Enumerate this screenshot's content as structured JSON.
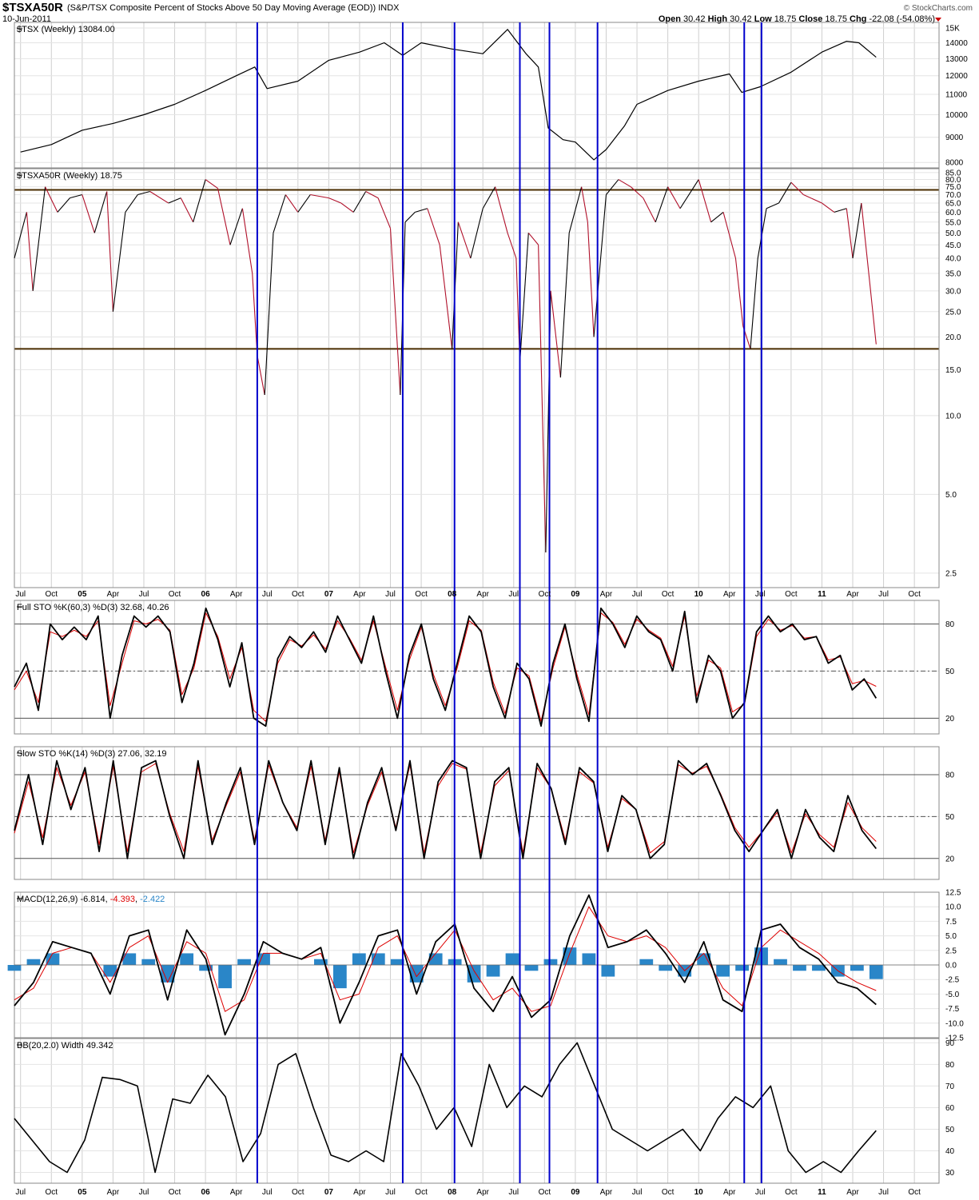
{
  "header": {
    "symbol": "$TSXA50R",
    "description": "(S&P/TSX Composite Percent of Stocks Above 50 Day Moving Average (EOD)) INDX",
    "date": "10-Jun-2011",
    "open_label": "Open",
    "open": "30.42",
    "high_label": "High",
    "high": "30.42",
    "low_label": "Low",
    "low": "18.75",
    "close_label": "Close",
    "close": "18.75",
    "chg_label": "Chg",
    "chg": "-22.08 (-54.08%)",
    "credit": "© StockCharts.com",
    "chg_color": "#cc0000"
  },
  "colors": {
    "price": "#000000",
    "breadth_down": "#b0102a",
    "signal": "#dd0000",
    "histogram": "#2a86c8",
    "vline": "#0000cc",
    "hline": "#4a2c00",
    "grid": "#cfcfcf"
  },
  "chart_data": [
    {
      "type": "line",
      "title": "$TSX (Weekly) 13084.00",
      "scale": "log",
      "yticks": [
        "8000",
        "9000",
        "10000",
        "11000",
        "12000",
        "13000",
        "14000",
        "15K"
      ],
      "ylim": [
        7800,
        15400
      ],
      "x": [
        2004.5,
        2004.75,
        2005.0,
        2005.25,
        2005.5,
        2005.75,
        2006.0,
        2006.25,
        2006.4,
        2006.5,
        2006.75,
        2007.0,
        2007.25,
        2007.45,
        2007.6,
        2007.75,
        2008.0,
        2008.25,
        2008.45,
        2008.6,
        2008.7,
        2008.78,
        2008.9,
        2009.0,
        2009.15,
        2009.25,
        2009.4,
        2009.5,
        2009.75,
        2010.0,
        2010.25,
        2010.35,
        2010.5,
        2010.75,
        2011.0,
        2011.2,
        2011.3,
        2011.44
      ],
      "values": [
        8400,
        8700,
        9300,
        9600,
        10000,
        10500,
        11200,
        12000,
        12500,
        11300,
        11700,
        12900,
        13400,
        14000,
        13200,
        14000,
        13600,
        13300,
        14900,
        13300,
        12500,
        9400,
        8900,
        8800,
        8100,
        8500,
        9500,
        10500,
        11200,
        11700,
        12100,
        11100,
        11400,
        12200,
        13400,
        14100,
        14000,
        13084
      ],
      "annotations": []
    },
    {
      "type": "line",
      "title": "$TSXA50R (Weekly) 18.75",
      "scale": "log",
      "yticks": [
        "2.5",
        "5.0",
        "10.0",
        "15.0",
        "20.0",
        "25.0",
        "30.0",
        "35.0",
        "40.0",
        "45.0",
        "50.0",
        "55.0",
        "60.0",
        "65.0",
        "70.0",
        "75.0",
        "80.0",
        "85.0"
      ],
      "ylim": [
        2.2,
        88
      ],
      "hlines": [
        73,
        18
      ],
      "x": [
        2004.45,
        2004.55,
        2004.6,
        2004.7,
        2004.8,
        2004.9,
        2005.0,
        2005.1,
        2005.2,
        2005.25,
        2005.35,
        2005.45,
        2005.55,
        2005.7,
        2005.8,
        2005.9,
        2006.0,
        2006.1,
        2006.2,
        2006.3,
        2006.38,
        2006.42,
        2006.48,
        2006.55,
        2006.65,
        2006.75,
        2006.85,
        2007.0,
        2007.1,
        2007.2,
        2007.3,
        2007.4,
        2007.5,
        2007.58,
        2007.62,
        2007.7,
        2007.8,
        2007.9,
        2008.0,
        2008.05,
        2008.15,
        2008.25,
        2008.35,
        2008.45,
        2008.52,
        2008.55,
        2008.62,
        2008.7,
        2008.76,
        2008.8,
        2008.88,
        2008.95,
        2009.05,
        2009.1,
        2009.15,
        2009.25,
        2009.35,
        2009.45,
        2009.55,
        2009.65,
        2009.75,
        2009.85,
        2010.0,
        2010.1,
        2010.2,
        2010.3,
        2010.36,
        2010.42,
        2010.48,
        2010.55,
        2010.65,
        2010.75,
        2010.85,
        2011.0,
        2011.1,
        2011.2,
        2011.25,
        2011.32,
        2011.38,
        2011.44
      ],
      "values": [
        40,
        60,
        30,
        75,
        60,
        68,
        70,
        50,
        72,
        25,
        60,
        70,
        72,
        65,
        68,
        55,
        80,
        74,
        45,
        62,
        35,
        17,
        12,
        50,
        70,
        60,
        70,
        68,
        65,
        60,
        72,
        68,
        52,
        12,
        55,
        60,
        62,
        45,
        18,
        55,
        40,
        62,
        75,
        50,
        40,
        16,
        50,
        45,
        3.0,
        30,
        14,
        50,
        75,
        55,
        20,
        70,
        80,
        75,
        68,
        55,
        75,
        62,
        80,
        55,
        60,
        40,
        22,
        18,
        40,
        62,
        65,
        78,
        70,
        65,
        60,
        62,
        40,
        65,
        35,
        18.75
      ],
      "annotations": []
    },
    {
      "type": "line",
      "title": "Full STO %K(60,3) %D(3) 32.68, 40.26",
      "yticks": [
        "20",
        "50",
        "80"
      ],
      "ylim": [
        10,
        95
      ],
      "hlines": [
        20,
        50,
        80
      ],
      "series": [
        {
          "name": "%K",
          "values": [
            40,
            55,
            25,
            80,
            70,
            78,
            70,
            85,
            20,
            60,
            85,
            78,
            85,
            75,
            30,
            55,
            90,
            70,
            40,
            68,
            20,
            15,
            58,
            72,
            65,
            75,
            62,
            85,
            70,
            55,
            85,
            50,
            20,
            60,
            80,
            45,
            25,
            55,
            85,
            75,
            40,
            20,
            55,
            45,
            15,
            55,
            80,
            45,
            18,
            90,
            80,
            65,
            85,
            75,
            70,
            50,
            88,
            30,
            60,
            50,
            20,
            30,
            75,
            85,
            75,
            80,
            70,
            72,
            55,
            60,
            38,
            45,
            32.68
          ]
        },
        {
          "name": "%D",
          "values": [
            38,
            50,
            30,
            75,
            72,
            76,
            72,
            82,
            28,
            55,
            82,
            80,
            83,
            76,
            35,
            52,
            87,
            72,
            45,
            65,
            25,
            18,
            55,
            70,
            66,
            73,
            64,
            82,
            71,
            57,
            82,
            53,
            25,
            57,
            78,
            48,
            28,
            52,
            82,
            76,
            43,
            23,
            52,
            47,
            18,
            52,
            78,
            48,
            22,
            87,
            81,
            67,
            83,
            76,
            71,
            53,
            85,
            34,
            57,
            52,
            24,
            29,
            72,
            83,
            76,
            79,
            71,
            72,
            57,
            59,
            42,
            44,
            40.26
          ]
        }
      ],
      "annotations": []
    },
    {
      "type": "line",
      "title": "Slow STO %K(14) %D(3) 27.06, 32.19",
      "yticks": [
        "20",
        "50",
        "80"
      ],
      "ylim": [
        5,
        100
      ],
      "hlines": [
        20,
        50,
        80
      ],
      "series": [
        {
          "name": "%K",
          "values": [
            40,
            80,
            30,
            90,
            55,
            85,
            25,
            90,
            20,
            85,
            90,
            50,
            20,
            90,
            30,
            60,
            85,
            30,
            90,
            60,
            40,
            90,
            30,
            85,
            20,
            60,
            85,
            40,
            90,
            20,
            75,
            90,
            85,
            20,
            75,
            85,
            20,
            88,
            70,
            30,
            85,
            75,
            25,
            65,
            55,
            20,
            30,
            90,
            80,
            88,
            65,
            40,
            25,
            40,
            55,
            20,
            55,
            35,
            25,
            65,
            40,
            27.06
          ]
        },
        {
          "name": "%D",
          "values": [
            38,
            75,
            35,
            85,
            58,
            82,
            30,
            86,
            25,
            82,
            88,
            52,
            25,
            86,
            33,
            58,
            82,
            33,
            87,
            60,
            42,
            86,
            33,
            82,
            24,
            58,
            82,
            42,
            87,
            24,
            72,
            88,
            84,
            24,
            72,
            83,
            24,
            85,
            70,
            33,
            82,
            74,
            28,
            63,
            55,
            24,
            32,
            87,
            81,
            86,
            66,
            42,
            28,
            40,
            53,
            24,
            52,
            37,
            28,
            60,
            42,
            32.19
          ]
        }
      ],
      "annotations": []
    },
    {
      "type": "line",
      "title": "MACD(12,26,9) -6.814, -4.393, -2.422",
      "title_parts": [
        "MACD(12,26,9) -6.814, ",
        "-4.393",
        ", ",
        "-2.422"
      ],
      "yticks": [
        "-12.5",
        "-10.0",
        "-7.5",
        "-5.0",
        "-2.5",
        "0.0",
        "2.5",
        "5.0",
        "7.5",
        "10.0",
        "12.5"
      ],
      "ylim": [
        -12.5,
        12.5
      ],
      "series": [
        {
          "name": "MACD",
          "values": [
            -7,
            -3,
            4,
            3,
            2,
            -5,
            5,
            6,
            -6,
            6,
            1,
            -12,
            -5,
            4,
            2,
            1,
            3,
            -10,
            -3,
            5,
            6,
            -5,
            4,
            7,
            -4,
            -8,
            -2,
            -9,
            -6,
            5,
            12,
            3,
            4,
            6,
            2,
            -3,
            4,
            -6,
            -8,
            6,
            7,
            3,
            1,
            -3,
            -4,
            -6.814
          ]
        },
        {
          "name": "Signal",
          "values": [
            -6,
            -4,
            2,
            3,
            2,
            -3,
            3,
            5,
            -3,
            4,
            2,
            -8,
            -6,
            2,
            2,
            1,
            2,
            -6,
            -5,
            3,
            5,
            -2,
            2,
            6,
            -1,
            -6,
            -4,
            -8,
            -7,
            2,
            10,
            5,
            4,
            5,
            3,
            -1,
            2,
            -4,
            -7,
            3,
            6,
            4,
            2,
            -1,
            -3,
            -4.393
          ]
        },
        {
          "name": "Histogram",
          "values": [
            -1,
            1,
            2,
            0,
            0,
            -2,
            2,
            1,
            -3,
            2,
            -1,
            -4,
            1,
            2,
            0,
            0,
            1,
            -4,
            2,
            2,
            1,
            -3,
            2,
            1,
            -3,
            -2,
            2,
            -1,
            1,
            3,
            2,
            -2,
            0,
            1,
            -1,
            -2,
            2,
            -2,
            -1,
            3,
            1,
            -1,
            -1,
            -2,
            -1,
            -2.422
          ]
        }
      ],
      "annotations": []
    },
    {
      "type": "line",
      "title": "BB(20,2.0) Width 49.342",
      "yticks": [
        "30",
        "40",
        "50",
        "60",
        "70",
        "80",
        "90"
      ],
      "ylim": [
        25,
        92
      ],
      "values": [
        55,
        45,
        35,
        30,
        45,
        74,
        73,
        70,
        30,
        64,
        62,
        75,
        65,
        35,
        48,
        80,
        85,
        60,
        38,
        35,
        40,
        35,
        85,
        70,
        50,
        60,
        42,
        80,
        60,
        70,
        65,
        80,
        90,
        70,
        50,
        45,
        40,
        45,
        50,
        40,
        55,
        65,
        60,
        70,
        40,
        30,
        35,
        30,
        40,
        49.342
      ],
      "annotations": []
    }
  ],
  "x_axis": {
    "labels": [
      "Jul",
      "Oct",
      "05",
      "Apr",
      "Jul",
      "Oct",
      "06",
      "Apr",
      "Jul",
      "Oct",
      "07",
      "Apr",
      "Jul",
      "Oct",
      "08",
      "Apr",
      "Jul",
      "Oct",
      "09",
      "Apr",
      "Jul",
      "Oct",
      "10",
      "Apr",
      "Jul",
      "Oct",
      "11",
      "Apr",
      "Jul",
      "Oct"
    ],
    "bold": [
      "05",
      "06",
      "07",
      "08",
      "09",
      "10",
      "11"
    ]
  },
  "vertical_markers": [
    2006.42,
    2007.6,
    2008.02,
    2008.55,
    2008.79,
    2009.18,
    2010.37,
    2010.51
  ]
}
